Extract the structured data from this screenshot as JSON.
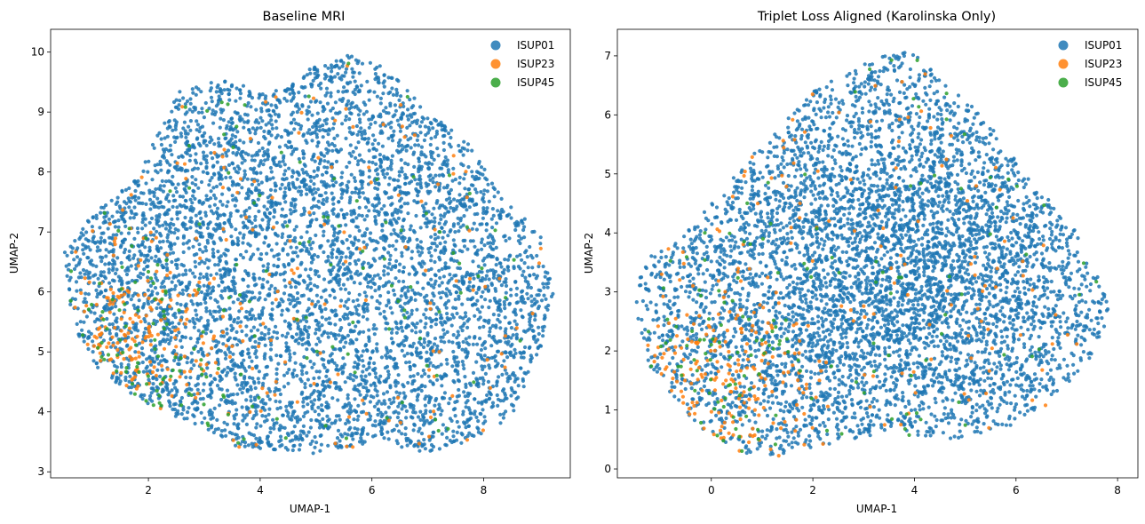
{
  "colors": {
    "ISUP01": "#1f77b4",
    "ISUP23": "#ff7f0e",
    "ISUP45": "#2ca02c"
  },
  "chart_data": [
    {
      "type": "scatter",
      "title": "Baseline MRI",
      "xlabel": "UMAP-1",
      "ylabel": "UMAP-2",
      "xlim": [
        0.25,
        9.55
      ],
      "ylim": [
        2.9,
        10.38
      ],
      "xticks": [
        2,
        4,
        6,
        8
      ],
      "yticks": [
        3,
        4,
        5,
        6,
        7,
        8,
        9,
        10
      ],
      "legend": {
        "position": "upper right",
        "entries": [
          "ISUP01",
          "ISUP23",
          "ISUP45"
        ]
      },
      "series": [
        {
          "name": "ISUP01",
          "approx_count": 5500,
          "hull": [
            [
              0.5,
              6.7
            ],
            [
              1.0,
              7.3
            ],
            [
              1.8,
              7.9
            ],
            [
              2.5,
              9.35
            ],
            [
              3.3,
              9.55
            ],
            [
              4.2,
              9.3
            ],
            [
              4.9,
              9.8
            ],
            [
              5.6,
              9.95
            ],
            [
              6.2,
              9.8
            ],
            [
              6.9,
              9.1
            ],
            [
              7.7,
              8.5
            ],
            [
              8.4,
              7.5
            ],
            [
              9.0,
              7.0
            ],
            [
              9.3,
              6.1
            ],
            [
              9.0,
              5.0
            ],
            [
              8.5,
              3.9
            ],
            [
              7.7,
              3.5
            ],
            [
              6.9,
              3.3
            ],
            [
              6.2,
              3.5
            ],
            [
              5.0,
              3.3
            ],
            [
              3.6,
              3.4
            ],
            [
              2.8,
              3.8
            ],
            [
              1.8,
              4.2
            ],
            [
              1.0,
              4.8
            ],
            [
              0.6,
              5.5
            ]
          ],
          "density_center": [
            5.2,
            6.3
          ],
          "density_spread": [
            2.4,
            1.7
          ]
        },
        {
          "name": "ISUP23",
          "approx_count": 320,
          "density_center": [
            1.9,
            5.2
          ],
          "density_spread": [
            0.7,
            0.7
          ],
          "scattered_fraction": 0.55
        },
        {
          "name": "ISUP45",
          "approx_count": 180,
          "density_center": [
            1.8,
            4.8
          ],
          "density_spread": [
            0.8,
            0.8
          ],
          "scattered_fraction": 0.6
        }
      ]
    },
    {
      "type": "scatter",
      "title": "Triplet Loss Aligned (Karolinska Only)",
      "xlabel": "UMAP-1",
      "ylabel": "UMAP-2",
      "xlim": [
        -1.85,
        8.4
      ],
      "ylim": [
        -0.15,
        7.45
      ],
      "xticks": [
        0,
        2,
        4,
        6,
        8
      ],
      "yticks": [
        0,
        1,
        2,
        3,
        4,
        5,
        6,
        7
      ],
      "legend": {
        "position": "upper right",
        "entries": [
          "ISUP01",
          "ISUP23",
          "ISUP45"
        ]
      },
      "series": [
        {
          "name": "ISUP01",
          "approx_count": 5500,
          "hull": [
            [
              -1.4,
              3.5
            ],
            [
              -0.6,
              3.9
            ],
            [
              0.2,
              4.7
            ],
            [
              1.0,
              5.5
            ],
            [
              2.0,
              6.4
            ],
            [
              2.8,
              6.8
            ],
            [
              3.4,
              7.0
            ],
            [
              4.0,
              7.1
            ],
            [
              4.6,
              6.5
            ],
            [
              5.4,
              6.0
            ],
            [
              6.2,
              5.0
            ],
            [
              7.2,
              4.0
            ],
            [
              7.6,
              3.4
            ],
            [
              7.9,
              2.6
            ],
            [
              7.4,
              1.8
            ],
            [
              6.5,
              1.0
            ],
            [
              5.8,
              0.7
            ],
            [
              4.8,
              0.5
            ],
            [
              3.4,
              0.6
            ],
            [
              2.2,
              0.4
            ],
            [
              1.4,
              0.2
            ],
            [
              0.4,
              0.3
            ],
            [
              -0.5,
              0.9
            ],
            [
              -1.2,
              1.7
            ],
            [
              -1.5,
              2.7
            ]
          ],
          "density_center": [
            3.6,
            3.4
          ],
          "density_spread": [
            2.4,
            1.7
          ]
        },
        {
          "name": "ISUP23",
          "approx_count": 320,
          "density_center": [
            0.2,
            1.4
          ],
          "density_spread": [
            0.9,
            0.9
          ],
          "scattered_fraction": 0.5
        },
        {
          "name": "ISUP45",
          "approx_count": 150,
          "density_center": [
            0.0,
            1.8
          ],
          "density_spread": [
            0.9,
            1.0
          ],
          "scattered_fraction": 0.55
        }
      ]
    }
  ]
}
